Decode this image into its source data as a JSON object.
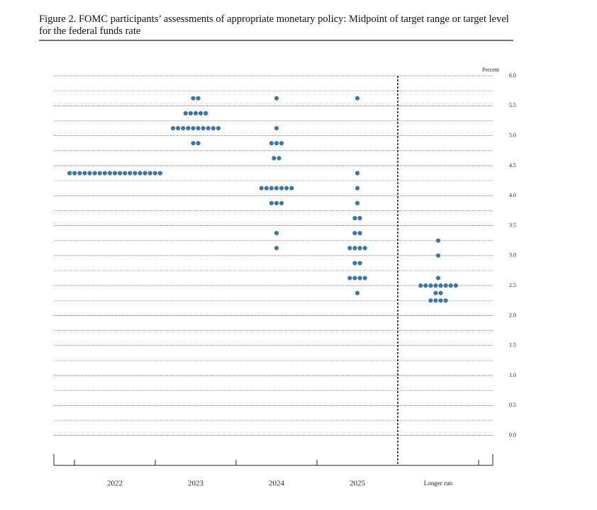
{
  "chart_data": {
    "type": "dot",
    "title": "Figure 2.  FOMC participants’ assessments of appropriate monetary policy:  Midpoint of target range or target level for the federal funds rate",
    "y_label": "Percent",
    "color": "#3a76a9",
    "categories": [
      "2022",
      "2023",
      "2024",
      "2025",
      "Longer run"
    ],
    "dots": [
      [
        {
          "y": 4.375,
          "count": 19
        }
      ],
      [
        {
          "y": 5.625,
          "count": 2
        },
        {
          "y": 5.375,
          "count": 5
        },
        {
          "y": 5.125,
          "count": 10
        },
        {
          "y": 4.875,
          "count": 2
        }
      ],
      [
        {
          "y": 5.625,
          "count": 1
        },
        {
          "y": 5.125,
          "count": 1
        },
        {
          "y": 4.875,
          "count": 3
        },
        {
          "y": 4.625,
          "count": 2
        },
        {
          "y": 4.125,
          "count": 7
        },
        {
          "y": 3.875,
          "count": 3
        },
        {
          "y": 3.375,
          "count": 1
        },
        {
          "y": 3.125,
          "count": 1
        }
      ],
      [
        {
          "y": 5.625,
          "count": 1
        },
        {
          "y": 4.375,
          "count": 1
        },
        {
          "y": 4.125,
          "count": 1
        },
        {
          "y": 3.875,
          "count": 1
        },
        {
          "y": 3.625,
          "count": 2
        },
        {
          "y": 3.375,
          "count": 2
        },
        {
          "y": 3.125,
          "count": 4
        },
        {
          "y": 2.875,
          "count": 2
        },
        {
          "y": 2.625,
          "count": 4
        },
        {
          "y": 2.375,
          "count": 1
        }
      ],
      [
        {
          "y": 3.25,
          "count": 1
        },
        {
          "y": 3.0,
          "count": 1
        },
        {
          "y": 2.625,
          "count": 1
        },
        {
          "y": 2.5,
          "count": 8
        },
        {
          "y": 2.375,
          "count": 2
        },
        {
          "y": 2.25,
          "count": 4
        }
      ]
    ],
    "ylim": [
      -0.5,
      6.0
    ],
    "yticks": [
      {
        "value": 0,
        "label": "0.0"
      },
      {
        "value": 0.5,
        "label": "0.5"
      },
      {
        "value": 1,
        "label": "1.0"
      },
      {
        "value": 1.5,
        "label": "1.5"
      },
      {
        "value": 2,
        "label": "2.0"
      },
      {
        "value": 2.5,
        "label": "2.5"
      },
      {
        "value": 3,
        "label": "3.0"
      },
      {
        "value": 3.5,
        "label": "3.5"
      },
      {
        "value": 4,
        "label": "4.0"
      },
      {
        "value": 4.5,
        "label": "4.5"
      },
      {
        "value": 5,
        "label": "5.0"
      },
      {
        "value": 5.5,
        "label": "5.5"
      },
      {
        "value": 6,
        "label": "6.0"
      }
    ],
    "minor_yticks": [
      0.25,
      0.75,
      1.25,
      1.75,
      2.25,
      2.75,
      3.25,
      3.75,
      4.25,
      4.75,
      5.25,
      5.75
    ],
    "grid": true
  }
}
